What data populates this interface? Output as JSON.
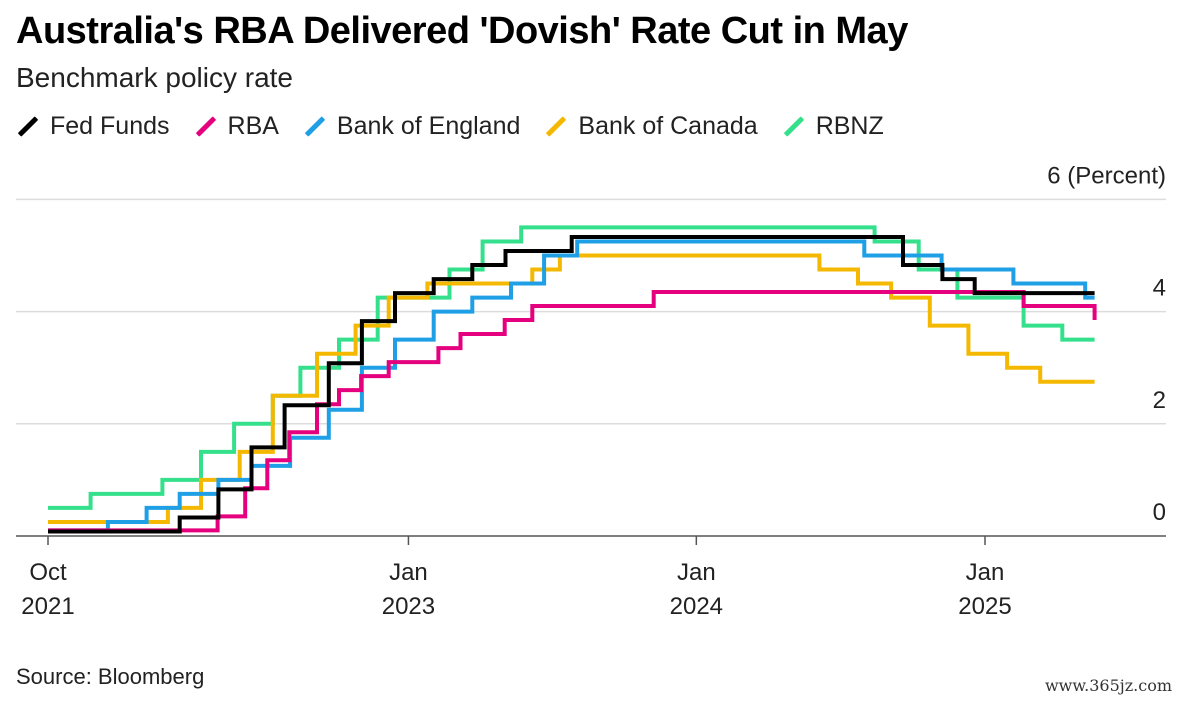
{
  "chart_data": {
    "type": "line",
    "title": "Australia's RBA Delivered 'Dovish' Rate Cut in May",
    "subtitle": "Benchmark policy rate",
    "unit_label": "6 (Percent)",
    "ylim": [
      0,
      6
    ],
    "y_ticks": [
      0,
      2,
      4
    ],
    "grid": true,
    "legend_position": "top-left",
    "x_start": "2021-10",
    "x_ticks": [
      {
        "date": "2021-10",
        "line1": "Oct",
        "line2": "2021"
      },
      {
        "date": "2023-01",
        "line1": "Jan",
        "line2": "2023"
      },
      {
        "date": "2024-01",
        "line1": "Jan",
        "line2": "2024"
      },
      {
        "date": "2025-01",
        "line1": "Jan",
        "line2": "2025"
      }
    ],
    "series": [
      {
        "name": "Fed Funds",
        "color": "#000000",
        "steps": [
          [
            "2021-10-01",
            0.08
          ],
          [
            "2022-03-17",
            0.33
          ],
          [
            "2022-05-05",
            0.83
          ],
          [
            "2022-06-16",
            1.58
          ],
          [
            "2022-07-28",
            2.33
          ],
          [
            "2022-09-22",
            3.08
          ],
          [
            "2022-11-03",
            3.83
          ],
          [
            "2022-12-15",
            4.33
          ],
          [
            "2023-02-02",
            4.58
          ],
          [
            "2023-03-23",
            4.83
          ],
          [
            "2023-05-04",
            5.08
          ],
          [
            "2023-07-27",
            5.33
          ],
          [
            "2024-09-19",
            4.83
          ],
          [
            "2024-11-08",
            4.58
          ],
          [
            "2024-12-19",
            4.33
          ],
          [
            "2025-05-20",
            4.33
          ]
        ]
      },
      {
        "name": "RBA",
        "color": "#e5007e",
        "steps": [
          [
            "2021-10-01",
            0.1
          ],
          [
            "2022-05-04",
            0.35
          ],
          [
            "2022-06-08",
            0.85
          ],
          [
            "2022-07-06",
            1.35
          ],
          [
            "2022-08-03",
            1.85
          ],
          [
            "2022-09-07",
            2.35
          ],
          [
            "2022-10-05",
            2.6
          ],
          [
            "2022-11-02",
            2.85
          ],
          [
            "2022-12-07",
            3.1
          ],
          [
            "2023-02-08",
            3.35
          ],
          [
            "2023-03-08",
            3.6
          ],
          [
            "2023-05-03",
            3.85
          ],
          [
            "2023-06-07",
            4.1
          ],
          [
            "2023-11-08",
            4.35
          ],
          [
            "2025-02-19",
            4.1
          ],
          [
            "2025-05-20",
            3.85
          ]
        ]
      },
      {
        "name": "Bank of England",
        "color": "#1fa0e6",
        "steps": [
          [
            "2021-10-01",
            0.1
          ],
          [
            "2021-12-16",
            0.25
          ],
          [
            "2022-02-03",
            0.5
          ],
          [
            "2022-03-17",
            0.75
          ],
          [
            "2022-05-05",
            1.0
          ],
          [
            "2022-06-16",
            1.25
          ],
          [
            "2022-08-04",
            1.75
          ],
          [
            "2022-09-22",
            2.25
          ],
          [
            "2022-11-03",
            3.0
          ],
          [
            "2022-12-15",
            3.5
          ],
          [
            "2023-02-02",
            4.0
          ],
          [
            "2023-03-23",
            4.25
          ],
          [
            "2023-05-11",
            4.5
          ],
          [
            "2023-06-22",
            5.0
          ],
          [
            "2023-08-03",
            5.25
          ],
          [
            "2024-08-01",
            5.0
          ],
          [
            "2024-11-07",
            4.75
          ],
          [
            "2025-02-06",
            4.5
          ],
          [
            "2025-05-08",
            4.25
          ],
          [
            "2025-05-20",
            4.25
          ]
        ]
      },
      {
        "name": "Bank of Canada",
        "color": "#f5b800",
        "steps": [
          [
            "2021-10-01",
            0.25
          ],
          [
            "2022-03-02",
            0.5
          ],
          [
            "2022-04-13",
            1.0
          ],
          [
            "2022-06-01",
            1.5
          ],
          [
            "2022-07-13",
            2.5
          ],
          [
            "2022-09-07",
            3.25
          ],
          [
            "2022-10-26",
            3.75
          ],
          [
            "2022-12-07",
            4.25
          ],
          [
            "2023-01-25",
            4.5
          ],
          [
            "2023-06-07",
            4.75
          ],
          [
            "2023-07-12",
            5.0
          ],
          [
            "2024-06-05",
            4.75
          ],
          [
            "2024-07-24",
            4.5
          ],
          [
            "2024-09-04",
            4.25
          ],
          [
            "2024-10-23",
            3.75
          ],
          [
            "2024-12-11",
            3.25
          ],
          [
            "2025-01-29",
            3.0
          ],
          [
            "2025-03-12",
            2.75
          ],
          [
            "2025-05-20",
            2.75
          ]
        ]
      },
      {
        "name": "RBNZ",
        "color": "#35e08c",
        "steps": [
          [
            "2021-10-01",
            0.5
          ],
          [
            "2021-11-24",
            0.75
          ],
          [
            "2022-02-23",
            1.0
          ],
          [
            "2022-04-13",
            1.5
          ],
          [
            "2022-05-25",
            2.0
          ],
          [
            "2022-07-13",
            2.5
          ],
          [
            "2022-08-17",
            3.0
          ],
          [
            "2022-10-05",
            3.5
          ],
          [
            "2022-11-23",
            4.25
          ],
          [
            "2023-02-22",
            4.75
          ],
          [
            "2023-04-05",
            5.25
          ],
          [
            "2023-05-24",
            5.5
          ],
          [
            "2024-08-14",
            5.25
          ],
          [
            "2024-10-09",
            4.75
          ],
          [
            "2024-11-27",
            4.25
          ],
          [
            "2025-02-19",
            3.75
          ],
          [
            "2025-04-09",
            3.5
          ],
          [
            "2025-05-20",
            3.5
          ]
        ]
      }
    ]
  },
  "source": "Source: Bloomberg",
  "watermark": "www.365jz.com"
}
